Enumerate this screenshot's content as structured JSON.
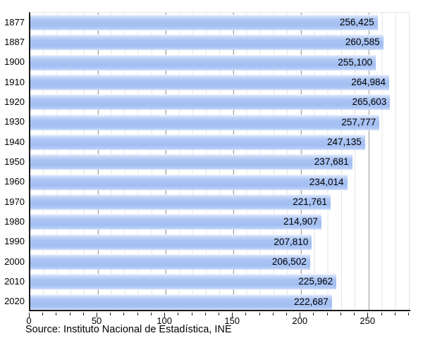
{
  "chart_data": {
    "type": "bar",
    "orientation": "horizontal",
    "title": "",
    "xlabel": "",
    "ylabel": "",
    "categories": [
      "1877",
      "1887",
      "1900",
      "1910",
      "1920",
      "1930",
      "1940",
      "1950",
      "1960",
      "1970",
      "1980",
      "1990",
      "2000",
      "2010",
      "2020"
    ],
    "values": [
      256425,
      260585,
      255100,
      264984,
      265603,
      257777,
      247135,
      237681,
      234014,
      221761,
      214907,
      207810,
      206502,
      225962,
      222687
    ],
    "value_labels": [
      "256,425",
      "260,585",
      "255,100",
      "264,984",
      "265,603",
      "257,777",
      "247,135",
      "237,681",
      "234,014",
      "221,761",
      "214,907",
      "207,810",
      "206,502",
      "225,962",
      "222,687"
    ],
    "xlim": [
      0,
      281600
    ],
    "x_ticks": [
      0,
      50000,
      100000,
      150000,
      200000,
      250000
    ],
    "x_tick_labels": [
      "0",
      "50",
      "100",
      "150",
      "200",
      "250"
    ],
    "x_minor_step": 10000,
    "grid": "vertical",
    "legend": "none",
    "source": "Source: Instituto Nacional de Estadística, INE",
    "colors": {
      "bar": "#a6c0f2",
      "bar_highlight": "#eef4fd",
      "gridline_minor": "#e4e4e4",
      "gridline_major": "#a3a3a3",
      "axis": "#1a1a1a",
      "text": "#000000",
      "background": "#ffffff"
    }
  }
}
